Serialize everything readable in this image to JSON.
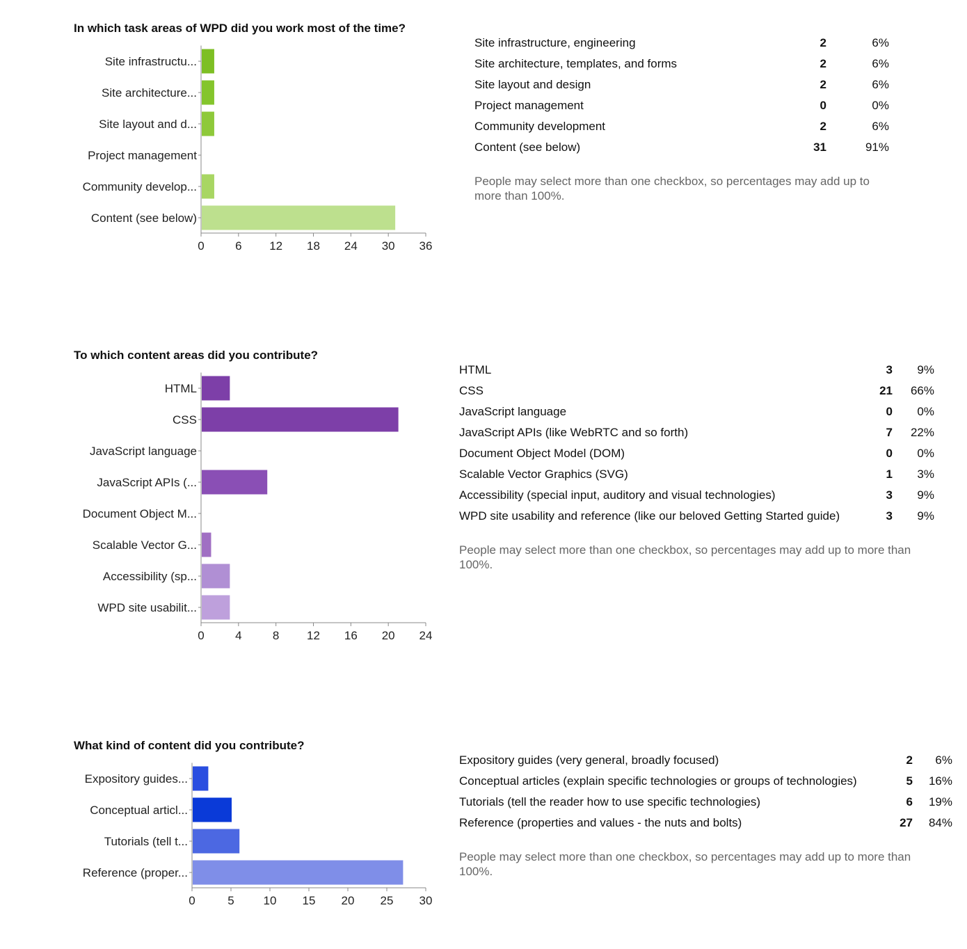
{
  "sections": [
    {
      "title": "In which task areas of WPD did you work most of the time?",
      "rows": [
        {
          "label": "Site infrastructure, engineering",
          "count": "2",
          "percent": "6%"
        },
        {
          "label": "Site architecture, templates, and forms",
          "count": "2",
          "percent": "6%"
        },
        {
          "label": "Site layout and design",
          "count": "2",
          "percent": "6%"
        },
        {
          "label": "Project management",
          "count": "0",
          "percent": "0%"
        },
        {
          "label": "Community development",
          "count": "2",
          "percent": "6%"
        },
        {
          "label": "Content (see below)",
          "count": "31",
          "percent": "91%"
        }
      ],
      "note": "People may select more than one checkbox, so percentages may add up to more than 100%."
    },
    {
      "title": "To which content areas did you contribute?",
      "rows": [
        {
          "label": "HTML",
          "count": "3",
          "percent": "9%"
        },
        {
          "label": "CSS",
          "count": "21",
          "percent": "66%"
        },
        {
          "label": "JavaScript language",
          "count": "0",
          "percent": "0%"
        },
        {
          "label": "JavaScript APIs (like WebRTC and so forth)",
          "count": "7",
          "percent": "22%"
        },
        {
          "label": "Document Object Model (DOM)",
          "count": "0",
          "percent": "0%"
        },
        {
          "label": "Scalable Vector Graphics (SVG)",
          "count": "1",
          "percent": "3%"
        },
        {
          "label": "Accessibility (special input, auditory and visual technologies)",
          "count": "3",
          "percent": "9%"
        },
        {
          "label": "WPD site usability and reference (like our beloved Getting Started guide)",
          "count": "3",
          "percent": "9%"
        }
      ],
      "note": "People may select more than one checkbox, so percentages may add up to more than 100%."
    },
    {
      "title": "What kind of content did you contribute?",
      "rows": [
        {
          "label": "Expository guides (very general, broadly focused)",
          "count": "2",
          "percent": "6%"
        },
        {
          "label": "Conceptual articles (explain specific technologies or groups of technologies)",
          "count": "5",
          "percent": "16%"
        },
        {
          "label": "Tutorials (tell the reader how to use specific technologies)",
          "count": "6",
          "percent": "19%"
        },
        {
          "label": "Reference (properties and values - the nuts and bolts)",
          "count": "27",
          "percent": "84%"
        }
      ],
      "note": "People may select more than one checkbox, so percentages may add up to more than 100%."
    }
  ],
  "chart_data": [
    {
      "type": "bar",
      "orientation": "horizontal",
      "categories": [
        "Site infrastructu...",
        "Site architecture...",
        "Site layout and d...",
        "Project management",
        "Community develop...",
        "Content (see below)"
      ],
      "values": [
        2,
        2,
        2,
        0,
        2,
        31
      ],
      "colors": [
        "#7dbf24",
        "#84c52c",
        "#8ec93a",
        "#9bd04c",
        "#a8d663",
        "#bde08e"
      ],
      "xlim": [
        0,
        36
      ],
      "xticks": [
        "0",
        "6",
        "12",
        "18",
        "24",
        "30",
        "36"
      ],
      "grid": false
    },
    {
      "type": "bar",
      "orientation": "horizontal",
      "categories": [
        "HTML",
        "CSS",
        "JavaScript language",
        "JavaScript APIs (...",
        "Document Object M...",
        "Scalable Vector G...",
        "Accessibility (sp...",
        "WPD site usabilit..."
      ],
      "values": [
        3,
        21,
        0,
        7,
        0,
        1,
        3,
        3
      ],
      "colors": [
        "#7d3fa8",
        "#7d3fa8",
        "#8649b0",
        "#8a4fb5",
        "#9660bd",
        "#a06fc3",
        "#b08fd4",
        "#bea0dc"
      ],
      "xlim": [
        0,
        24
      ],
      "xticks": [
        "0",
        "4",
        "8",
        "12",
        "16",
        "20",
        "24"
      ],
      "grid": false
    },
    {
      "type": "bar",
      "orientation": "horizontal",
      "categories": [
        "Expository guides...",
        "Conceptual articl...",
        "Tutorials (tell t...",
        "Reference (proper..."
      ],
      "values": [
        2,
        5,
        6,
        27
      ],
      "colors": [
        "#2a4ee0",
        "#0a3ad8",
        "#4c68e2",
        "#7f8ee8"
      ],
      "xlim": [
        0,
        30
      ],
      "xticks": [
        "0",
        "5",
        "10",
        "15",
        "20",
        "25",
        "30"
      ],
      "grid": false
    }
  ]
}
